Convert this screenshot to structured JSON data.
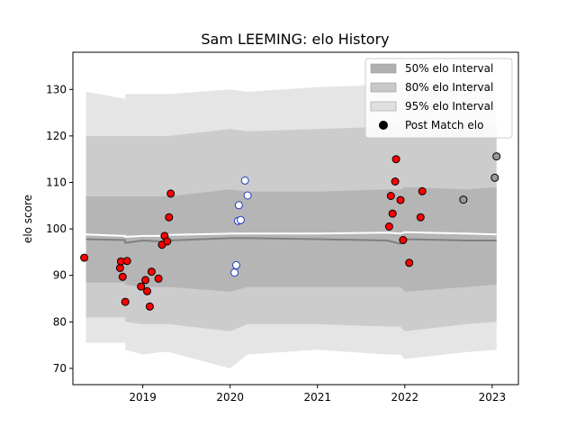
{
  "chart_data": {
    "type": "scatter",
    "title": "Sam LEEMING: elo History",
    "xlabel": "",
    "ylabel": "elo score",
    "xlim": [
      2018.2,
      2023.3
    ],
    "ylim": [
      66.5,
      138
    ],
    "x_ticks": [
      2019,
      2020,
      2021,
      2022,
      2023
    ],
    "y_ticks": [
      70,
      80,
      90,
      100,
      110,
      120,
      130
    ],
    "grid": false,
    "legend": {
      "placement": "top-right",
      "entries": [
        {
          "label": "50% elo Interval",
          "kind": "patch",
          "color": "#b0b0b0"
        },
        {
          "label": "80% elo Interval",
          "kind": "patch",
          "color": "#c8c8c8"
        },
        {
          "label": "95% elo Interval",
          "kind": "patch",
          "color": "#e0e0e0"
        },
        {
          "label": "Post Match elo",
          "kind": "marker",
          "color": "#000000"
        }
      ]
    },
    "bands": {
      "x": [
        2018.35,
        2018.8,
        2018.8,
        2019.0,
        2019.2,
        2019.3,
        2020.0,
        2020.2,
        2021.0,
        2021.8,
        2021.95,
        2022.0,
        2022.7,
        2023.05
      ],
      "p95_hi": [
        129.5,
        128,
        129,
        129,
        129,
        129,
        130,
        129.5,
        130.5,
        131,
        131,
        131,
        131,
        132
      ],
      "p95_lo": [
        75.5,
        75.5,
        74,
        73,
        73.5,
        73.5,
        70,
        73,
        74,
        73,
        73,
        72,
        73.5,
        74
      ],
      "p80_hi": [
        120,
        120,
        120,
        120,
        120,
        120,
        121.5,
        121,
        121.5,
        122,
        122,
        122,
        122,
        122.5
      ],
      "p80_lo": [
        81,
        81,
        80,
        79.5,
        79.5,
        79.5,
        78,
        79.5,
        79.5,
        79,
        79,
        78,
        79.5,
        80
      ],
      "p50_hi": [
        107,
        107,
        107,
        107,
        107,
        107,
        108.5,
        108,
        108,
        108.5,
        108.5,
        109,
        108.5,
        109
      ],
      "p50_lo": [
        88.5,
        88.5,
        88,
        87.5,
        87.5,
        87.5,
        86.5,
        87.5,
        87.5,
        87.5,
        87.5,
        86.5,
        87.5,
        88
      ],
      "mean": [
        97.8,
        97.6,
        97.0,
        97.5,
        97.3,
        97.5,
        98.0,
        98.0,
        97.8,
        97.5,
        96.8,
        97.8,
        97.5,
        97.5
      ],
      "upper_white": [
        98.8,
        98.5,
        98.3,
        98.5,
        98.5,
        98.7,
        99.0,
        99.0,
        99.0,
        99.2,
        99.0,
        99.3,
        99.0,
        98.8
      ]
    },
    "series": [
      {
        "marker_color": "#ff0000",
        "x": [
          2018.33,
          2018.74,
          2018.75,
          2018.77,
          2018.8,
          2018.82,
          2018.98,
          2019.03,
          2019.05,
          2019.08,
          2019.1,
          2019.18,
          2019.22,
          2019.25,
          2019.28,
          2019.3,
          2019.32
        ],
        "y": [
          93.8,
          91.6,
          93.0,
          89.7,
          84.3,
          93.1,
          87.6,
          89.0,
          86.6,
          83.3,
          90.8,
          89.3,
          96.6,
          98.5,
          97.3,
          102.5,
          107.6
        ]
      },
      {
        "marker_color": "#ffffff",
        "x": [
          2020.05,
          2020.07,
          2020.09,
          2020.1,
          2020.12,
          2020.17,
          2020.2
        ],
        "y": [
          90.6,
          92.2,
          101.7,
          105.1,
          101.9,
          110.4,
          107.2
        ]
      },
      {
        "marker_color": "#ff0000",
        "x": [
          2021.82,
          2021.84,
          2021.86,
          2021.89,
          2021.9,
          2021.95,
          2021.98,
          2022.05,
          2022.18,
          2022.2
        ],
        "y": [
          100.5,
          107.1,
          103.3,
          110.2,
          115.0,
          106.2,
          97.6,
          92.7,
          102.5,
          108.1
        ]
      },
      {
        "marker_color": "#999999",
        "x": [
          2022.67,
          2023.03,
          2023.05
        ],
        "y": [
          106.3,
          111.0,
          115.6
        ]
      }
    ]
  }
}
